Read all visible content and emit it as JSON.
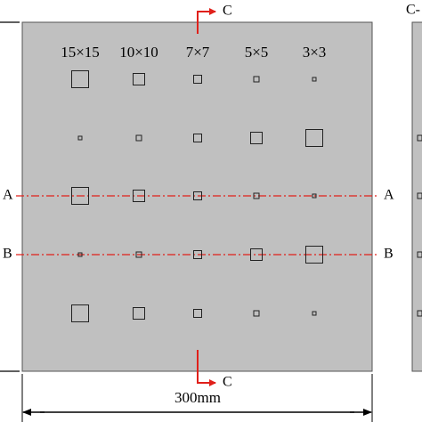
{
  "column_labels": [
    "15×15",
    "10×10",
    "7×7",
    "5×5",
    "3×3"
  ],
  "section_a": {
    "left": "A",
    "right": "A"
  },
  "section_b": {
    "left": "B",
    "right": "B"
  },
  "section_c": {
    "top": "C",
    "bottom": "C"
  },
  "side_view_label": "C-",
  "dimension": "300mm"
}
